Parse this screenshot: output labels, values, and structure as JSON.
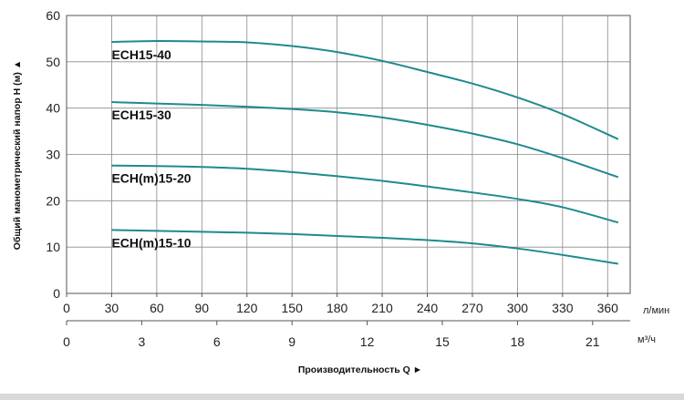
{
  "chart_data": {
    "type": "line",
    "ylabel": "Общий манометрический напор H (м) ▲",
    "xlabel": "Производительность Q ►",
    "x_unit_primary": "л/мин",
    "x_unit_secondary": "м³/ч",
    "ylim": [
      0,
      60
    ],
    "yticks": [
      "0",
      "10",
      "20",
      "30",
      "40",
      "50",
      "60"
    ],
    "xlim": [
      0,
      375
    ],
    "xticks_primary": [
      "0",
      "30",
      "60",
      "90",
      "120",
      "150",
      "180",
      "210",
      "240",
      "270",
      "300",
      "330",
      "360"
    ],
    "xticks_secondary": [
      "0",
      "3",
      "6",
      "9",
      "12",
      "15",
      "18",
      "21"
    ],
    "grid": true,
    "series_color": "#1f8a8c",
    "series": [
      {
        "name": "ECH15-40",
        "x": [
          30,
          60,
          90,
          120,
          150,
          180,
          210,
          240,
          270,
          300,
          330,
          367
        ],
        "y": [
          54.3,
          54.5,
          54.4,
          54.2,
          53.4,
          52.1,
          50.2,
          47.8,
          45.3,
          42.3,
          38.7,
          33.3
        ]
      },
      {
        "name": "ECH15-30",
        "x": [
          30,
          60,
          90,
          120,
          150,
          180,
          210,
          240,
          270,
          300,
          330,
          367
        ],
        "y": [
          41.3,
          41.0,
          40.7,
          40.3,
          39.8,
          39.1,
          38.0,
          36.4,
          34.5,
          32.2,
          29.2,
          25.1
        ]
      },
      {
        "name": "ECH(m)15-20",
        "x": [
          30,
          60,
          90,
          120,
          150,
          180,
          210,
          240,
          270,
          300,
          330,
          367
        ],
        "y": [
          27.6,
          27.5,
          27.3,
          26.9,
          26.2,
          25.3,
          24.3,
          23.1,
          21.8,
          20.4,
          18.6,
          15.3
        ]
      },
      {
        "name": "ECH(m)15-10",
        "x": [
          30,
          60,
          90,
          120,
          150,
          180,
          210,
          240,
          270,
          300,
          330,
          367
        ],
        "y": [
          13.7,
          13.5,
          13.3,
          13.1,
          12.8,
          12.4,
          12.0,
          11.5,
          10.8,
          9.7,
          8.3,
          6.4
        ]
      }
    ]
  }
}
